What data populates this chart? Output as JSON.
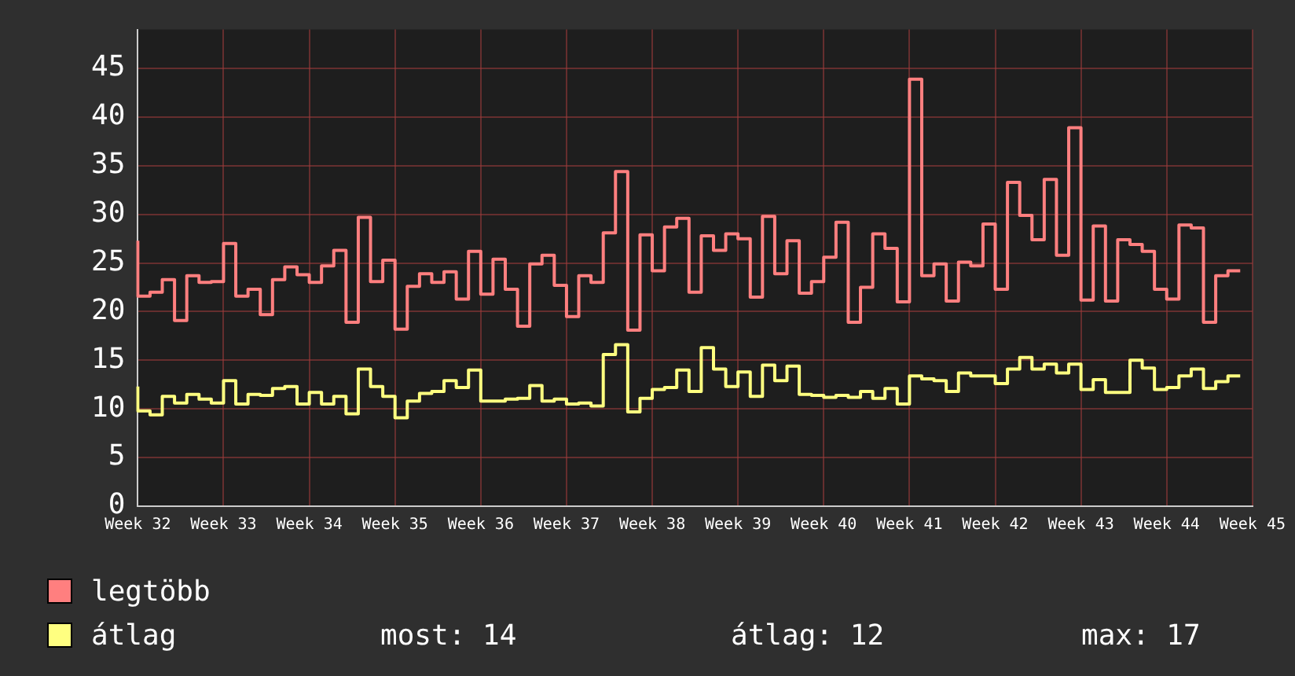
{
  "chart_data": {
    "type": "step",
    "categories": [
      "Week 32",
      null,
      null,
      null,
      null,
      null,
      null,
      "Week 33",
      null,
      null,
      null,
      null,
      null,
      null,
      "Week 34",
      null,
      null,
      null,
      null,
      null,
      null,
      "Week 35",
      null,
      null,
      null,
      null,
      null,
      null,
      "Week 36",
      null,
      null,
      null,
      null,
      null,
      null,
      "Week 37",
      null,
      null,
      null,
      null,
      null,
      null,
      "Week 38",
      null,
      null,
      null,
      null,
      null,
      null,
      "Week 39",
      null,
      null,
      null,
      null,
      null,
      null,
      "Week 40",
      null,
      null,
      null,
      null,
      null,
      null,
      "Week 41",
      null,
      null,
      null,
      null,
      null,
      null,
      "Week 42",
      null,
      null,
      null,
      null,
      null,
      null,
      "Week 43",
      null,
      null,
      null,
      null,
      null,
      null,
      "Week 44",
      null,
      null,
      null,
      null,
      null,
      null,
      "Week 45"
    ],
    "series": [
      {
        "name": "legtöbb",
        "color": "#ff7f7f",
        "values": [
          27.3,
          21.6,
          22.0,
          23.3,
          19.1,
          23.7,
          23.0,
          23.1,
          27.0,
          21.6,
          22.3,
          19.7,
          23.3,
          24.6,
          23.8,
          23.0,
          24.7,
          26.3,
          18.9,
          29.7,
          23.1,
          25.3,
          18.2,
          22.6,
          23.9,
          23.0,
          24.1,
          21.3,
          26.2,
          21.8,
          25.4,
          22.3,
          18.5,
          24.9,
          25.8,
          22.7,
          19.5,
          23.7,
          23.0,
          28.1,
          34.4,
          18.1,
          27.9,
          24.2,
          28.7,
          29.6,
          22.0,
          27.8,
          26.3,
          28.0,
          27.5,
          21.5,
          29.8,
          23.9,
          27.3,
          21.9,
          23.1,
          25.6,
          29.2,
          18.9,
          22.5,
          28.0,
          26.5,
          21.0,
          43.9,
          23.7,
          24.9,
          21.1,
          25.1,
          24.7,
          29.0,
          22.3,
          33.3,
          29.9,
          27.4,
          33.6,
          25.8,
          38.9,
          21.2,
          28.8,
          21.1,
          27.4,
          26.9,
          26.2,
          22.3,
          21.3,
          28.9,
          28.6,
          18.9,
          23.7,
          24.2,
          null
        ]
      },
      {
        "name": "átlag",
        "color": "#ffff80",
        "values": [
          12.3,
          9.8,
          9.4,
          11.3,
          10.6,
          11.5,
          11.0,
          10.6,
          12.9,
          10.5,
          11.5,
          11.4,
          12.1,
          12.3,
          10.5,
          11.7,
          10.5,
          11.3,
          9.5,
          14.1,
          12.3,
          11.3,
          9.1,
          10.8,
          11.6,
          11.8,
          12.9,
          12.2,
          14.0,
          10.8,
          10.8,
          11.0,
          11.1,
          12.4,
          10.8,
          11.0,
          10.5,
          10.6,
          10.3,
          15.6,
          16.6,
          9.7,
          11.1,
          12.0,
          12.2,
          14.0,
          11.8,
          16.3,
          14.1,
          12.3,
          13.8,
          11.3,
          14.5,
          12.9,
          14.4,
          11.5,
          11.4,
          11.2,
          11.4,
          11.2,
          11.8,
          11.1,
          12.1,
          10.5,
          13.4,
          13.1,
          12.9,
          11.8,
          13.7,
          13.4,
          13.4,
          12.6,
          14.1,
          15.3,
          14.1,
          14.6,
          13.7,
          14.6,
          12.0,
          13.0,
          11.7,
          11.7,
          15.0,
          14.2,
          12.0,
          12.2,
          13.4,
          14.1,
          12.1,
          12.8,
          13.4,
          null
        ]
      }
    ],
    "ylim": [
      0,
      49
    ],
    "yticks": [
      0,
      5,
      10,
      15,
      20,
      25,
      30,
      35,
      40,
      45
    ],
    "grid": true,
    "legend": "bottom left",
    "annotations": [
      "most: 14",
      "átlag: 12",
      "max: 17"
    ]
  }
}
